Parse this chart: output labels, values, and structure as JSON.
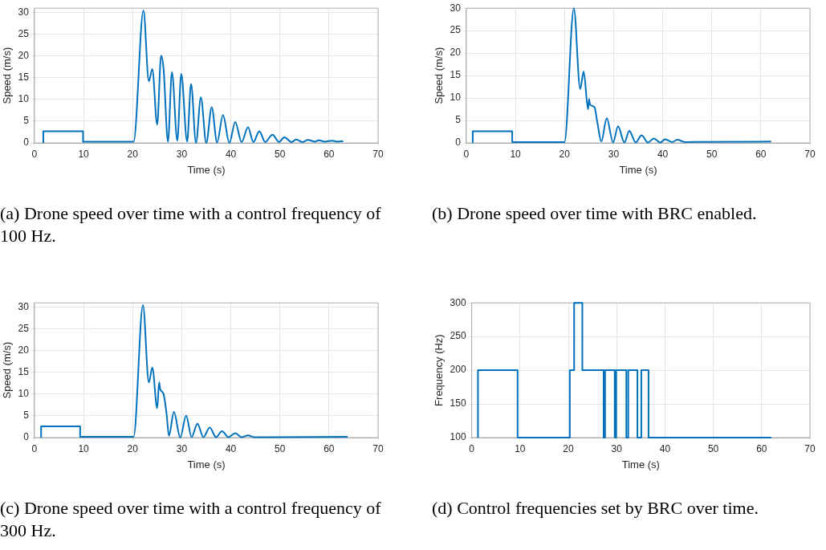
{
  "chart_data": [
    {
      "type": "line",
      "xlabel": "Time (s)",
      "ylabel": "Speed (m/s)",
      "xlim": [
        0,
        70
      ],
      "xticks": [
        0,
        10,
        20,
        30,
        40,
        50,
        60,
        70
      ],
      "ylim": [
        0,
        31
      ],
      "yticks": [
        0,
        5,
        10,
        15,
        20,
        25,
        30
      ],
      "grid": true,
      "annotations": [
        "(a) Drone speed over time with a control frequency of 100 Hz."
      ],
      "series": [
        {
          "color": "#0072bd",
          "x": [
            1.8,
            1.8,
            9.9,
            9.9,
            20.2,
            22.2,
            23.3,
            24.0,
            25.0,
            25.8,
            26.3,
            27.2,
            28.0,
            29.1,
            29.9,
            31.1,
            31.9,
            32.9,
            33.9,
            35.0,
            36.1,
            37.2,
            38.4,
            39.7,
            40.9,
            42.2,
            43.5,
            44.6,
            45.8,
            47.0,
            48.5,
            49.8,
            50.9,
            52.4,
            53.3,
            54.6,
            55.7,
            57.1,
            57.9,
            59.1,
            60.6,
            61.7,
            62.9
          ],
          "values": [
            0,
            2.7,
            2.7,
            0.3,
            0.3,
            30.5,
            14.2,
            17.0,
            4.2,
            20.1,
            17.0,
            0.3,
            16.3,
            0.5,
            15.9,
            0.3,
            13.6,
            0,
            10.5,
            0,
            8.2,
            0.1,
            6.4,
            0,
            4.8,
            0.2,
            3.6,
            0.2,
            2.7,
            0.2,
            1.9,
            0.2,
            1.3,
            0.2,
            0.8,
            0.2,
            0.7,
            0.3,
            0.6,
            0.3,
            0.5,
            0.3,
            0.4
          ]
        }
      ]
    },
    {
      "type": "line",
      "xlabel": "Time (s)",
      "ylabel": "Speed (m/s)",
      "xlim": [
        0,
        70
      ],
      "xticks": [
        0,
        10,
        20,
        30,
        40,
        50,
        60,
        70
      ],
      "ylim": [
        0,
        30
      ],
      "yticks": [
        0,
        5,
        10,
        15,
        20,
        25,
        30
      ],
      "grid": true,
      "annotations": [
        "(b) Drone speed over time with BRC enabled."
      ],
      "series": [
        {
          "color": "#0072bd",
          "x": [
            1.3,
            1.3,
            9.35,
            9.35,
            20.0,
            21.9,
            23.2,
            23.9,
            24.8,
            25.0,
            25.2,
            26.1,
            26.7,
            27.5,
            28.6,
            29.9,
            30.9,
            32.2,
            33.2,
            34.5,
            35.7,
            37.0,
            38.2,
            39.5,
            40.5,
            41.9,
            43.0,
            44.5,
            62.1
          ],
          "values": [
            0,
            2.6,
            2.6,
            0.2,
            0.2,
            30,
            12.0,
            15.9,
            7.5,
            9.8,
            8.5,
            8.0,
            4.5,
            0.3,
            5.5,
            0.1,
            3.7,
            0.1,
            2.7,
            0.1,
            1.7,
            0.1,
            1.0,
            0.1,
            0.8,
            0.2,
            0.7,
            0.2,
            0.3
          ]
        }
      ]
    },
    {
      "type": "line",
      "xlabel": "Time (s)",
      "ylabel": "Speed (m/s)",
      "xlim": [
        0,
        70
      ],
      "xticks": [
        0,
        10,
        20,
        30,
        40,
        50,
        60,
        70
      ],
      "ylim": [
        0,
        31
      ],
      "yticks": [
        0,
        5,
        10,
        15,
        20,
        25,
        30
      ],
      "grid": true,
      "annotations": [
        "(c) Drone speed over time with a control frequency of 300 Hz."
      ],
      "series": [
        {
          "color": "#0072bd",
          "x": [
            1.35,
            1.35,
            9.3,
            9.3,
            20.2,
            22.1,
            23.3,
            24.0,
            25.0,
            25.4,
            25.6,
            26.3,
            26.9,
            27.4,
            28.4,
            29.7,
            30.9,
            32.0,
            33.2,
            34.4,
            35.7,
            37.0,
            38.2,
            39.5,
            40.9,
            42.2,
            43.5,
            44.8,
            63.8
          ],
          "values": [
            0,
            2.6,
            2.6,
            0.2,
            0.2,
            30.5,
            12.7,
            16.1,
            6.8,
            12.7,
            11.2,
            10.0,
            5.6,
            0.4,
            5.9,
            0,
            5.1,
            0.1,
            3.2,
            0.1,
            2.3,
            0.1,
            1.5,
            0.1,
            1.0,
            0.1,
            0.5,
            0.1,
            0.2
          ]
        }
      ]
    },
    {
      "type": "step",
      "xlabel": "Time (s)",
      "ylabel": "Frequency (Hz)",
      "xlim": [
        0,
        70
      ],
      "xticks": [
        0,
        10,
        20,
        30,
        40,
        50,
        60,
        70
      ],
      "ylim": [
        100,
        300
      ],
      "yticks": [
        100,
        150,
        200,
        250,
        300
      ],
      "grid": true,
      "annotations": [
        "(d) Control frequencies set by BRC over time."
      ],
      "series": [
        {
          "color": "#0072bd",
          "x": [
            1.3,
            1.3,
            9.5,
            20.3,
            21.2,
            22.9,
            27.3,
            27.6,
            29.6,
            29.9,
            32.0,
            32.4,
            34.3,
            35.1,
            36.6,
            62.0
          ],
          "values": [
            100,
            200,
            100,
            200,
            300,
            200,
            100,
            200,
            100,
            200,
            100,
            200,
            100,
            200,
            100,
            100
          ]
        }
      ]
    }
  ]
}
